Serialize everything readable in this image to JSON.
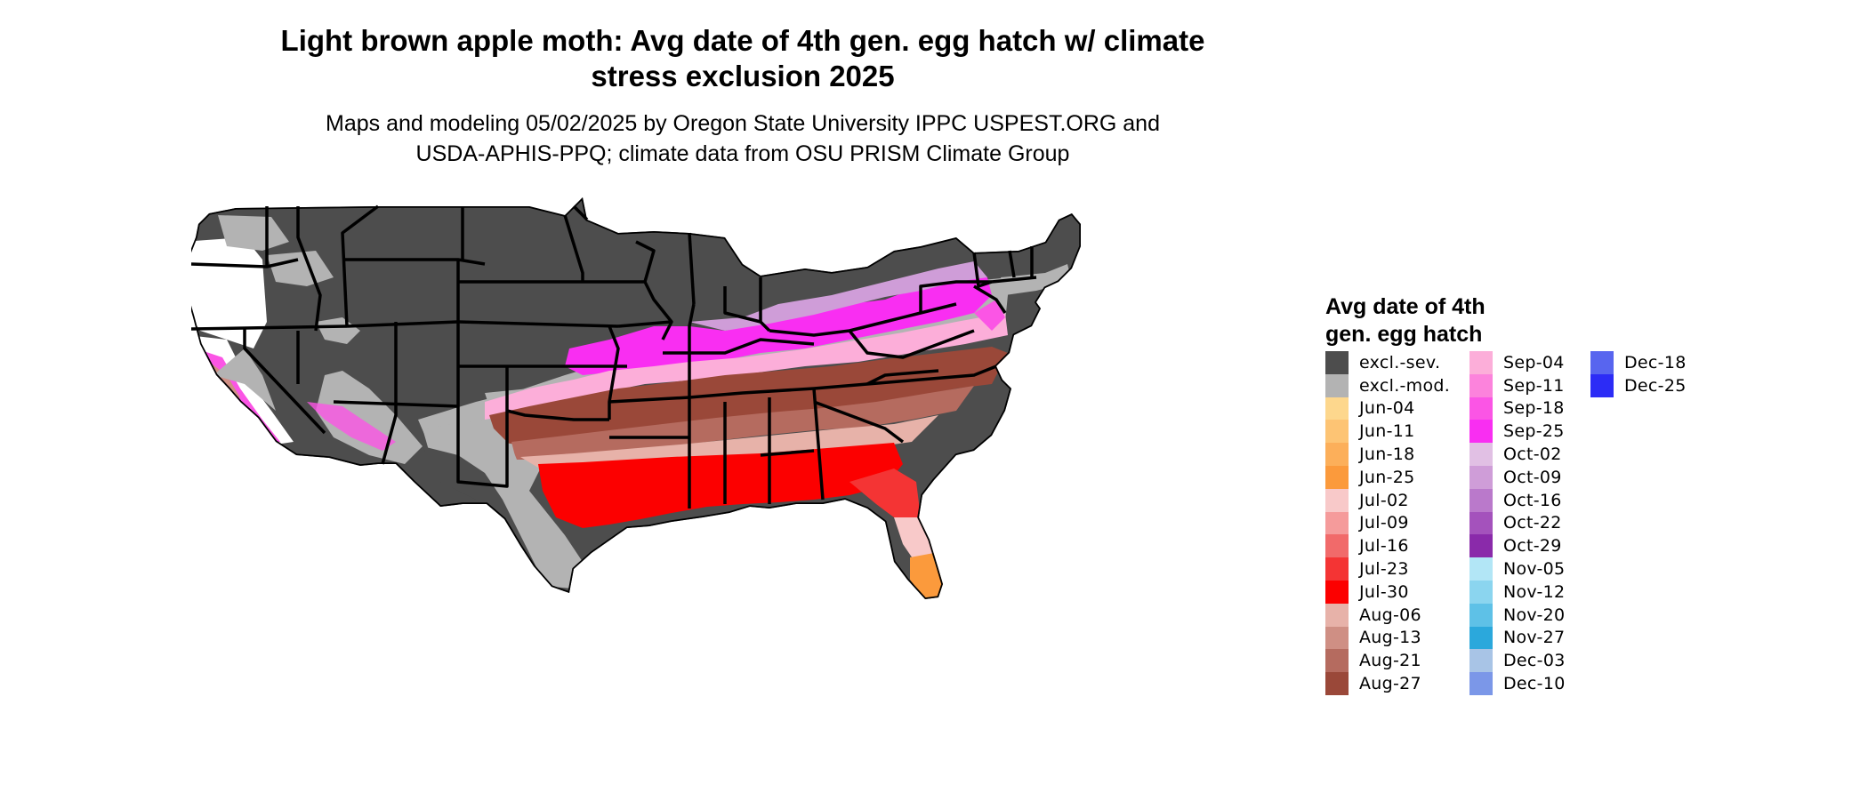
{
  "title_line1": "Light brown apple moth: Avg date of 4th gen. egg hatch w/ climate",
  "title_line2": "stress exclusion 2025",
  "subtitle_line1": "Maps and modeling 05/02/2025 by Oregon State University IPPC USPEST.ORG and",
  "subtitle_line2": "USDA-APHIS-PPQ; climate data from OSU PRISM Climate Group",
  "legend": {
    "title_line1": "Avg date of 4th",
    "title_line2": "gen. egg hatch",
    "items": [
      {
        "label": "excl.-sev.",
        "color": "#4d4d4d"
      },
      {
        "label": "excl.-mod.",
        "color": "#b3b3b3"
      },
      {
        "label": "Jun-04",
        "color": "#fdd78d"
      },
      {
        "label": "Jun-11",
        "color": "#fdc474"
      },
      {
        "label": "Jun-18",
        "color": "#fcaf5a"
      },
      {
        "label": "Jun-25",
        "color": "#fb9a3c"
      },
      {
        "label": "Jul-02",
        "color": "#f8c9c9"
      },
      {
        "label": "Jul-09",
        "color": "#f59b9b"
      },
      {
        "label": "Jul-16",
        "color": "#f16a6a"
      },
      {
        "label": "Jul-23",
        "color": "#f43434"
      },
      {
        "label": "Jul-30",
        "color": "#fc0000"
      },
      {
        "label": "Aug-06",
        "color": "#e7b2a9"
      },
      {
        "label": "Aug-13",
        "color": "#cf8f84"
      },
      {
        "label": "Aug-21",
        "color": "#b56b5f"
      },
      {
        "label": "Aug-27",
        "color": "#9a4839"
      },
      {
        "label": "Sep-04",
        "color": "#fcaed9"
      },
      {
        "label": "Sep-11",
        "color": "#fc83dc"
      },
      {
        "label": "Sep-18",
        "color": "#fb55e5"
      },
      {
        "label": "Sep-25",
        "color": "#f92ef2"
      },
      {
        "label": "Oct-02",
        "color": "#e1c0e4"
      },
      {
        "label": "Oct-09",
        "color": "#cf9dd8"
      },
      {
        "label": "Oct-16",
        "color": "#ba79cb"
      },
      {
        "label": "Oct-22",
        "color": "#a452bc"
      },
      {
        "label": "Oct-29",
        "color": "#8a2aaa"
      },
      {
        "label": "Nov-05",
        "color": "#b2e6f6"
      },
      {
        "label": "Nov-12",
        "color": "#8bd5ef"
      },
      {
        "label": "Nov-20",
        "color": "#5ec1e7"
      },
      {
        "label": "Nov-27",
        "color": "#2ba8dc"
      },
      {
        "label": "Dec-03",
        "color": "#a8c4e6"
      },
      {
        "label": "Dec-10",
        "color": "#7b97e8"
      },
      {
        "label": "Dec-18",
        "color": "#5865ef"
      },
      {
        "label": "Dec-25",
        "color": "#2c2cf6"
      }
    ]
  },
  "colors": {
    "border": "#000000",
    "background": "#ffffff"
  }
}
